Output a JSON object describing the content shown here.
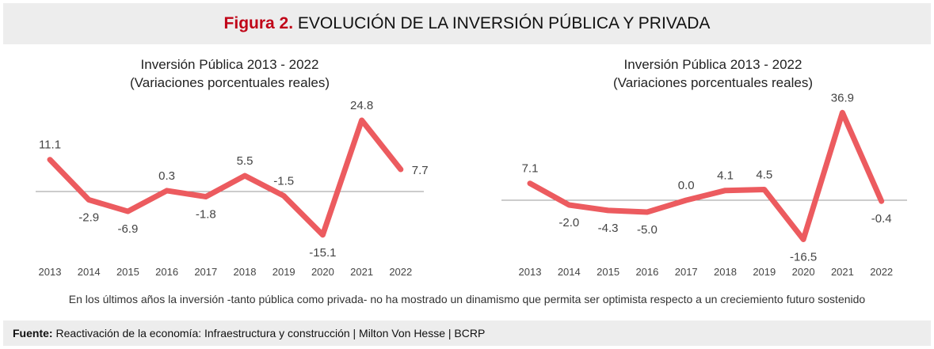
{
  "header": {
    "figure_label": "Figura 2.",
    "title": "EVOLUCIÓN DE LA INVERSIÓN PÚBLICA Y PRIVADA"
  },
  "chart_data": [
    {
      "type": "line",
      "title": "Inversión Pública 2013 - 2022",
      "subtitle": "(Variaciones porcentuales reales)",
      "categories": [
        "2013",
        "2014",
        "2015",
        "2016",
        "2017",
        "2018",
        "2019",
        "2020",
        "2021",
        "2022"
      ],
      "values": [
        11.1,
        -2.9,
        -6.9,
        0.3,
        -1.8,
        5.5,
        -1.5,
        -15.1,
        24.8,
        7.7
      ],
      "labels": [
        "11.1",
        "-2.9",
        "-6.9",
        "0.3",
        "-1.8",
        "5.5",
        "-1.5",
        "-15.1",
        "24.8",
        "7.7"
      ],
      "color": "#ec5b5f",
      "grid": false,
      "zero_line": true
    },
    {
      "type": "line",
      "title": "Inversión Pública 2013 - 2022",
      "subtitle": "(Variaciones porcentuales reales)",
      "categories": [
        "2013",
        "2014",
        "2015",
        "2016",
        "2017",
        "2018",
        "2019",
        "2020",
        "2021",
        "2022"
      ],
      "values": [
        7.1,
        -2.0,
        -4.3,
        -5.0,
        0.0,
        4.1,
        4.5,
        -16.5,
        36.9,
        -0.4
      ],
      "labels": [
        "7.1",
        "-2.0",
        "-4.3",
        "-5.0",
        "0.0",
        "4.1",
        "4.5",
        "-16.5",
        "36.9",
        "-0.4"
      ],
      "color": "#ec5b5f",
      "grid": false,
      "zero_line": true
    }
  ],
  "caption": "En los últimos años la inversión -tanto pública como privada- no ha mostrado un dinamismo que permita ser optimista respecto a un creciemiento futuro sostenido",
  "footer": {
    "label": "Fuente:",
    "text": "Reactivación de la economía: Infraestructura y construcción | Milton Von Hesse | BCRP"
  }
}
